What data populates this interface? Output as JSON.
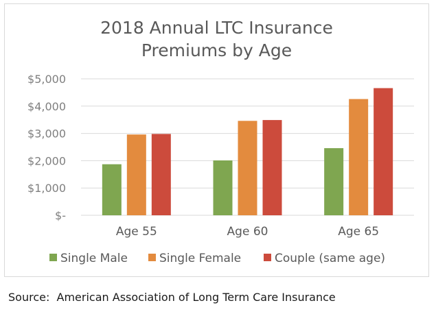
{
  "chart_data": {
    "type": "bar",
    "title": "2018 Annual LTC Insurance\nPremiums by Age",
    "categories": [
      "Age 55",
      "Age 60",
      "Age 65"
    ],
    "series": [
      {
        "name": "Single Male",
        "color": "#7fa650",
        "values": [
          1870,
          2010,
          2460
        ]
      },
      {
        "name": "Single Female",
        "color": "#e38b3e",
        "values": [
          2960,
          3460,
          4260
        ]
      },
      {
        "name": "Couple (same age)",
        "color": "#cc4b3c",
        "values": [
          2980,
          3490,
          4660
        ]
      }
    ],
    "ylim": [
      0,
      5000
    ],
    "yticks": [
      0,
      1000,
      2000,
      3000,
      4000,
      5000
    ],
    "ytick_labels": [
      "$-",
      "$1,000",
      "$2,000",
      "$3,000",
      "$4,000",
      "$5,000"
    ],
    "grid": true,
    "legend": "bottom"
  },
  "source": "Source:  American Association of Long Term Care Insurance"
}
